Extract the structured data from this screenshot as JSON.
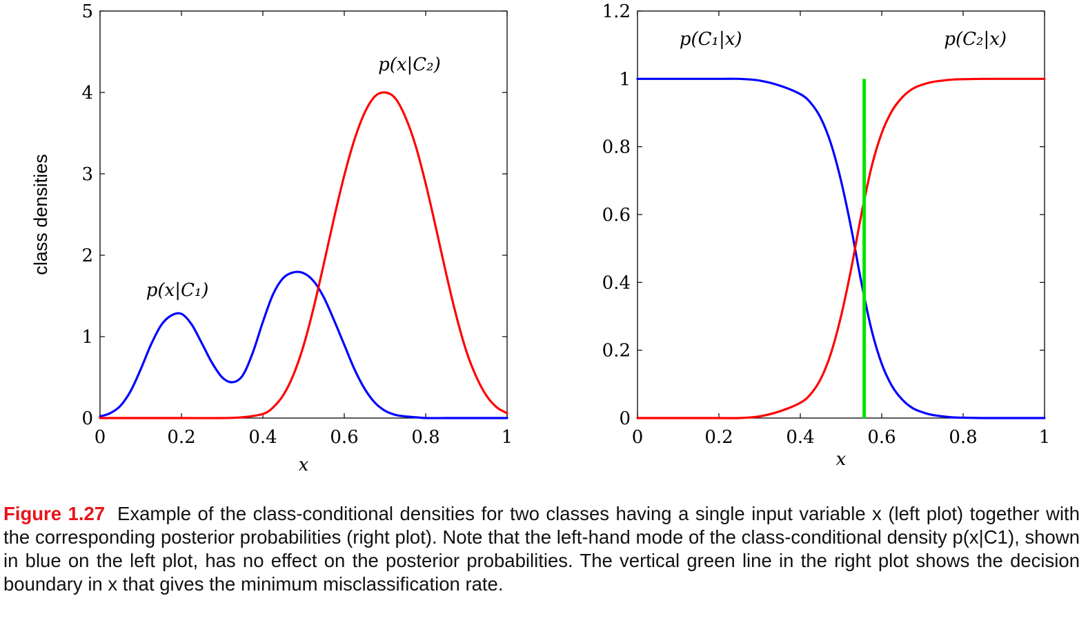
{
  "chart_data": [
    {
      "type": "line",
      "title": "",
      "xlabel": "x",
      "ylabel": "class densities",
      "xlim": [
        0,
        1
      ],
      "ylim": [
        0,
        5
      ],
      "xticks": [
        "0",
        "0.2",
        "0.4",
        "0.6",
        "0.8",
        "1"
      ],
      "yticks": [
        "0",
        "1",
        "2",
        "3",
        "4",
        "5"
      ],
      "grid": false,
      "series": [
        {
          "name": "p(x|C1)",
          "color": "#0000ff",
          "x": [
            0.0,
            0.025,
            0.05,
            0.075,
            0.1,
            0.125,
            0.15,
            0.175,
            0.2,
            0.225,
            0.25,
            0.275,
            0.3,
            0.325,
            0.35,
            0.375,
            0.4,
            0.425,
            0.45,
            0.475,
            0.5,
            0.525,
            0.55,
            0.575,
            0.6,
            0.625,
            0.65,
            0.675,
            0.7,
            0.725,
            0.75,
            0.775,
            0.8,
            0.85,
            0.9,
            0.95,
            1.0
          ],
          "y": [
            0.02,
            0.06,
            0.15,
            0.33,
            0.6,
            0.9,
            1.14,
            1.26,
            1.28,
            1.15,
            0.92,
            0.68,
            0.5,
            0.44,
            0.52,
            0.8,
            1.18,
            1.52,
            1.72,
            1.79,
            1.78,
            1.68,
            1.48,
            1.2,
            0.9,
            0.6,
            0.36,
            0.19,
            0.09,
            0.04,
            0.02,
            0.01,
            0.0,
            0.0,
            0.0,
            0.0,
            0.0
          ]
        },
        {
          "name": "p(x|C2)",
          "color": "#ff0000",
          "x": [
            0.0,
            0.1,
            0.2,
            0.3,
            0.35,
            0.4,
            0.425,
            0.45,
            0.475,
            0.5,
            0.525,
            0.55,
            0.575,
            0.6,
            0.625,
            0.65,
            0.675,
            0.7,
            0.725,
            0.75,
            0.775,
            0.8,
            0.825,
            0.85,
            0.875,
            0.9,
            0.925,
            0.95,
            0.975,
            1.0
          ],
          "y": [
            0.0,
            0.0,
            0.0,
            0.0,
            0.01,
            0.05,
            0.13,
            0.28,
            0.53,
            0.89,
            1.36,
            1.9,
            2.46,
            2.98,
            3.42,
            3.75,
            3.95,
            4.0,
            3.93,
            3.7,
            3.35,
            2.88,
            2.34,
            1.78,
            1.26,
            0.82,
            0.5,
            0.27,
            0.13,
            0.06
          ]
        }
      ],
      "annotations": [
        {
          "text": "p(x|C1)",
          "x": 0.19,
          "y": 1.5
        },
        {
          "text": "p(x|C2)",
          "x": 0.76,
          "y": 4.27
        }
      ]
    },
    {
      "type": "line",
      "title": "",
      "xlabel": "x",
      "ylabel": "",
      "xlim": [
        0,
        1
      ],
      "ylim": [
        0,
        1.2
      ],
      "xticks": [
        "0",
        "0.2",
        "0.4",
        "0.6",
        "0.8",
        "1"
      ],
      "yticks": [
        "0",
        "0.2",
        "0.4",
        "0.6",
        "0.8",
        "1",
        "1.2"
      ],
      "grid": false,
      "series": [
        {
          "name": "p(C1|x)",
          "color": "#0000ff",
          "x": [
            0.0,
            0.1,
            0.2,
            0.25,
            0.3,
            0.35,
            0.4,
            0.425,
            0.45,
            0.475,
            0.5,
            0.525,
            0.55,
            0.575,
            0.6,
            0.625,
            0.65,
            0.675,
            0.7,
            0.725,
            0.75,
            0.775,
            0.8,
            0.85,
            0.9,
            1.0
          ],
          "y": [
            1.0,
            1.0,
            1.0,
            1.0,
            0.995,
            0.98,
            0.955,
            0.93,
            0.885,
            0.81,
            0.7,
            0.56,
            0.4,
            0.26,
            0.16,
            0.095,
            0.055,
            0.03,
            0.017,
            0.009,
            0.005,
            0.002,
            0.001,
            0.0,
            0.0,
            0.0
          ]
        },
        {
          "name": "p(C2|x)",
          "color": "#ff0000",
          "x": [
            0.0,
            0.1,
            0.2,
            0.25,
            0.3,
            0.35,
            0.4,
            0.425,
            0.45,
            0.475,
            0.5,
            0.525,
            0.55,
            0.575,
            0.6,
            0.625,
            0.65,
            0.675,
            0.7,
            0.725,
            0.75,
            0.775,
            0.8,
            0.85,
            0.9,
            1.0
          ],
          "y": [
            0.0,
            0.0,
            0.0,
            0.0,
            0.005,
            0.02,
            0.045,
            0.07,
            0.115,
            0.19,
            0.3,
            0.44,
            0.6,
            0.74,
            0.84,
            0.905,
            0.945,
            0.97,
            0.983,
            0.991,
            0.995,
            0.998,
            0.999,
            1.0,
            1.0,
            1.0
          ]
        }
      ],
      "decision_boundary": {
        "x": 0.557,
        "y_range": [
          0,
          1
        ],
        "color": "#00e400"
      },
      "annotations": [
        {
          "text": "p(C1|x)",
          "x": 0.18,
          "y": 1.1
        },
        {
          "text": "p(C2|x)",
          "x": 0.83,
          "y": 1.1
        }
      ]
    }
  ],
  "caption": {
    "label": "Figure 1.27",
    "text": "Example of the class-conditional densities for two classes having a single input variable x (left plot) together with the corresponding posterior probabilities (right plot). Note that the left-hand mode of the class-conditional density p(x|C1), shown in blue on the left plot, has no effect on the posterior probabilities. The vertical green line in the right plot shows the decision boundary in x that gives the minimum misclassification rate."
  }
}
